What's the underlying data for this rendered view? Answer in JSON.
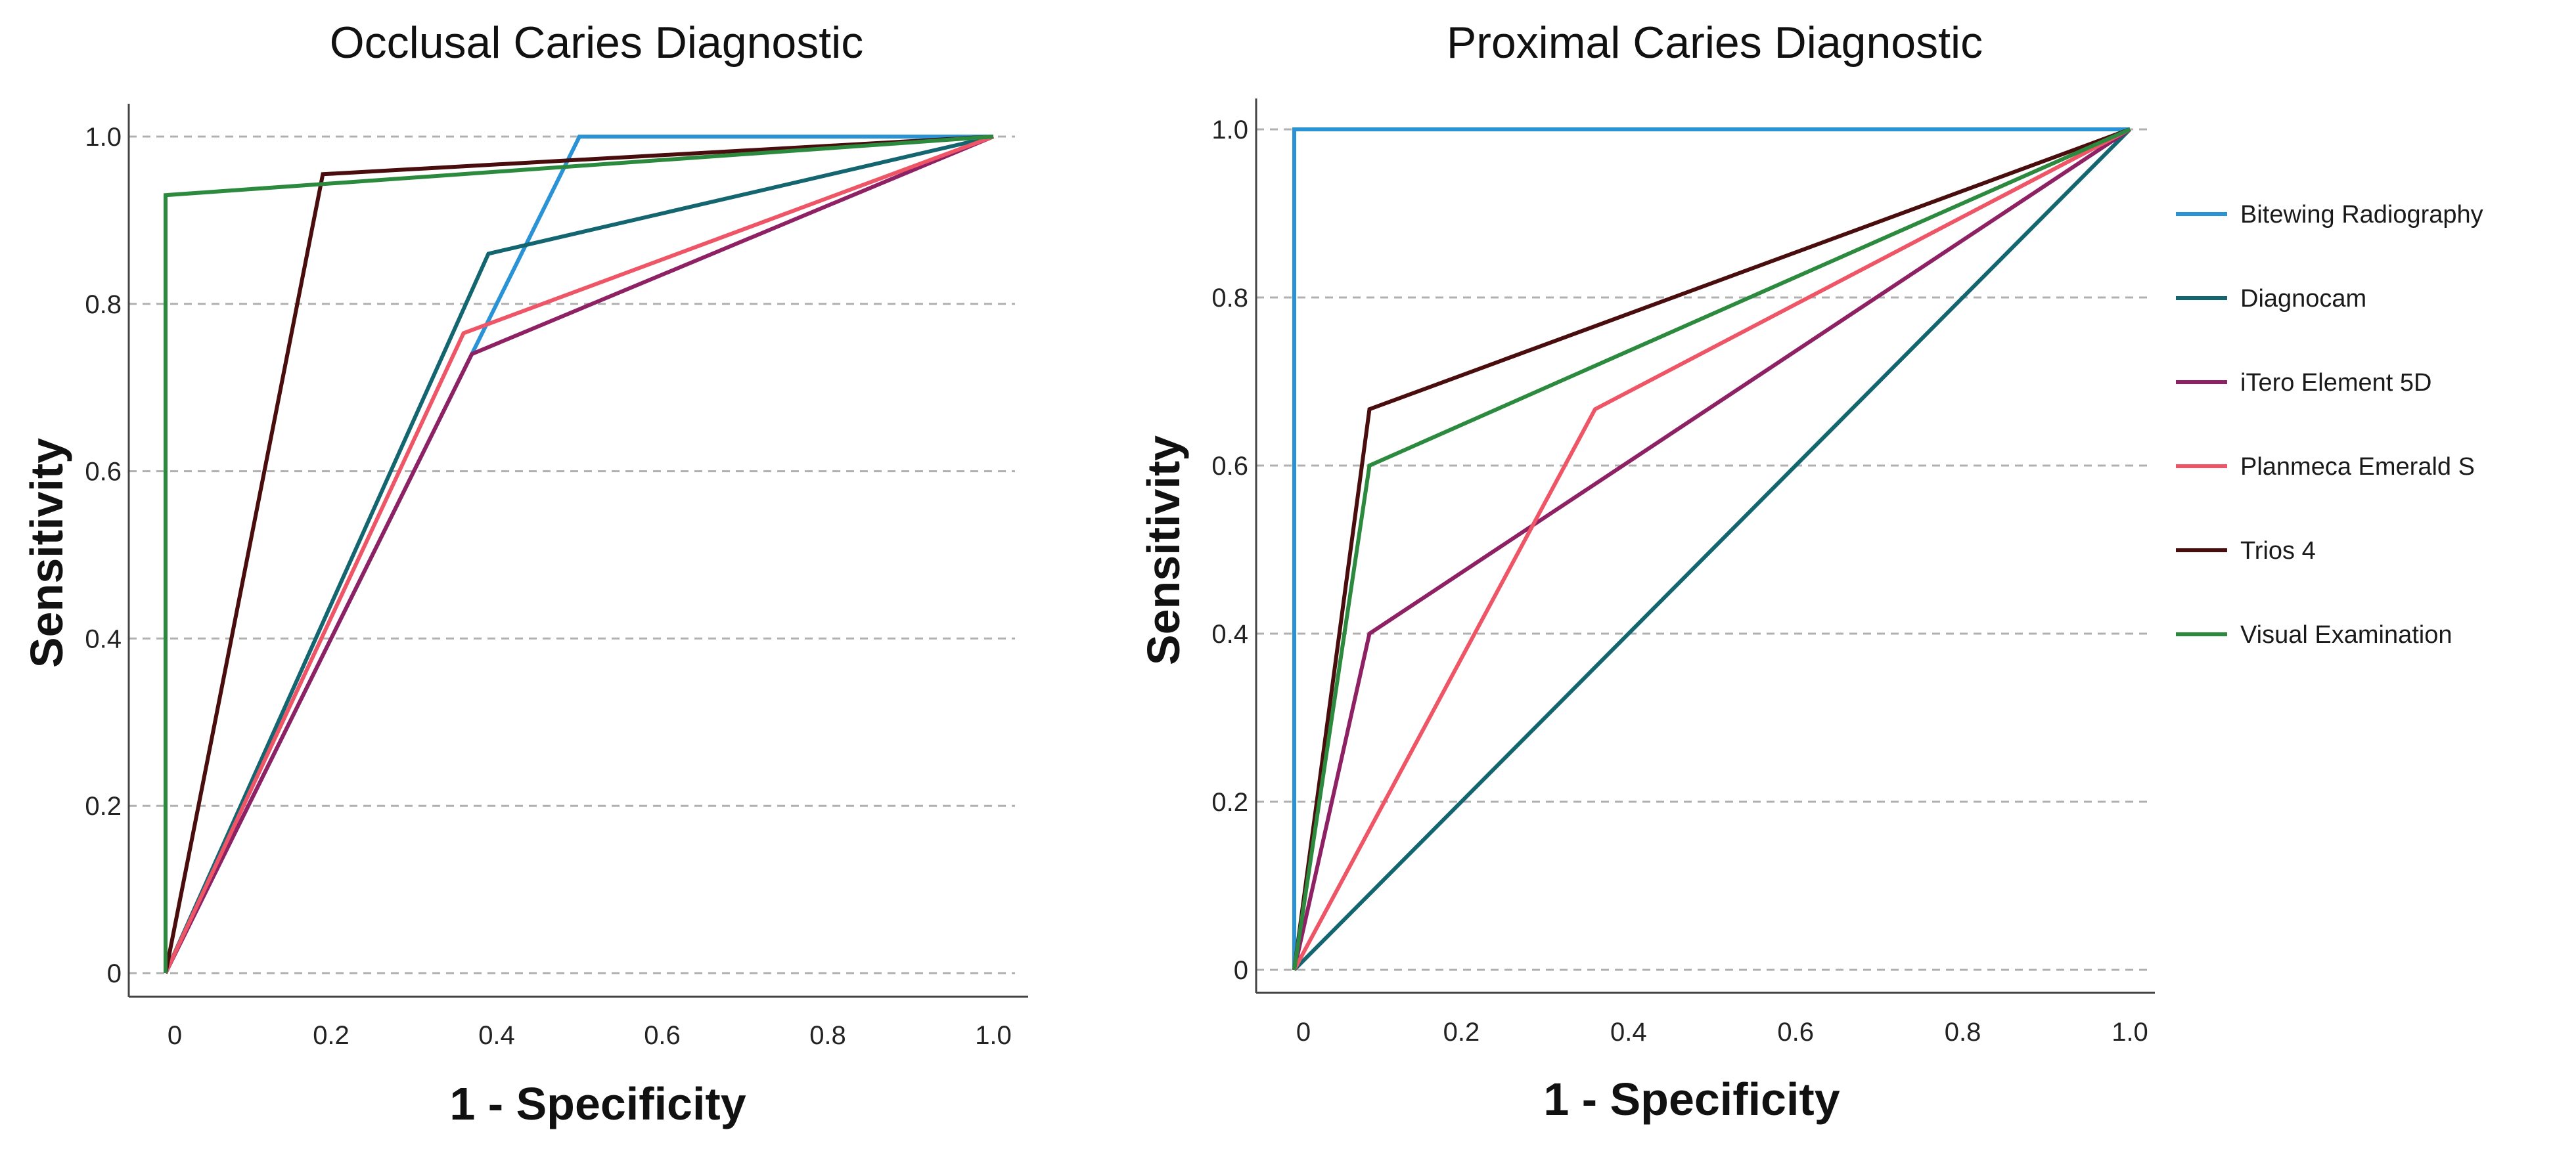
{
  "colors": {
    "Bitewing Radiography": "#2a93d5",
    "Diagnocam": "#136570",
    "iTero Element 5D": "#8e2163",
    "Planmeca Emerald S": "#ee5566",
    "Trios 4": "#4a0d0d",
    "Visual Examination": "#2b8a3e"
  },
  "legend": {
    "items": [
      {
        "label": "Bitewing Radiography"
      },
      {
        "label": "Diagnocam"
      },
      {
        "label": "iTero Element 5D"
      },
      {
        "label": "Planmeca Emerald S"
      },
      {
        "label": "Trios 4"
      },
      {
        "label": "Visual Examination"
      }
    ]
  },
  "chart_data": [
    {
      "type": "line",
      "title": "Occlusal Caries Diagnostic",
      "xlabel": "1 - Specificity",
      "ylabel": "Sensitivity",
      "xlim": [
        0,
        1
      ],
      "ylim": [
        0,
        1
      ],
      "xticks": [
        "0",
        "0.2",
        "0.4",
        "0.6",
        "0.8",
        "1.0"
      ],
      "yticks": [
        "0",
        "0.2",
        "0.4",
        "0.6",
        "0.8",
        "1.0"
      ],
      "grid": "horizontal dashed",
      "series": [
        {
          "name": "Bitewing Radiography",
          "x": [
            0,
            0.5,
            1
          ],
          "y": [
            0,
            1,
            1
          ]
        },
        {
          "name": "Diagnocam",
          "x": [
            0,
            0.39,
            1
          ],
          "y": [
            0,
            0.86,
            1
          ]
        },
        {
          "name": "iTero Element 5D",
          "x": [
            0,
            0.37,
            1
          ],
          "y": [
            0,
            0.74,
            1
          ]
        },
        {
          "name": "Planmeca Emerald S",
          "x": [
            0,
            0.36,
            1
          ],
          "y": [
            0,
            0.765,
            1
          ]
        },
        {
          "name": "Trios 4",
          "x": [
            0,
            0.19,
            1
          ],
          "y": [
            0,
            0.955,
            1
          ]
        },
        {
          "name": "Visual Examination",
          "x": [
            0,
            0,
            1
          ],
          "y": [
            0,
            0.93,
            1
          ]
        }
      ]
    },
    {
      "type": "line",
      "title": "Proximal Caries Diagnostic",
      "xlabel": "1 - Specificity",
      "ylabel": "Sensitivity",
      "xlim": [
        0,
        1
      ],
      "ylim": [
        0,
        1
      ],
      "xticks": [
        "0",
        "0.2",
        "0.4",
        "0.6",
        "0.8",
        "1.0"
      ],
      "yticks": [
        "0",
        "0.2",
        "0.4",
        "0.6",
        "0.8",
        "1.0"
      ],
      "grid": "horizontal dashed",
      "legend": "right",
      "series": [
        {
          "name": "Bitewing Radiography",
          "x": [
            0,
            0,
            1
          ],
          "y": [
            0,
            1,
            1
          ]
        },
        {
          "name": "Diagnocam",
          "x": [
            0,
            1
          ],
          "y": [
            0,
            1
          ]
        },
        {
          "name": "iTero Element 5D",
          "x": [
            0,
            0.09,
            1
          ],
          "y": [
            0,
            0.4,
            1
          ]
        },
        {
          "name": "Planmeca Emerald S",
          "x": [
            0,
            0.36,
            1
          ],
          "y": [
            0,
            0.667,
            1
          ]
        },
        {
          "name": "Trios 4",
          "x": [
            0,
            0.09,
            1
          ],
          "y": [
            0,
            0.667,
            1
          ]
        },
        {
          "name": "Visual Examination",
          "x": [
            0,
            0.09,
            1
          ],
          "y": [
            0,
            0.6,
            1
          ]
        }
      ]
    }
  ]
}
